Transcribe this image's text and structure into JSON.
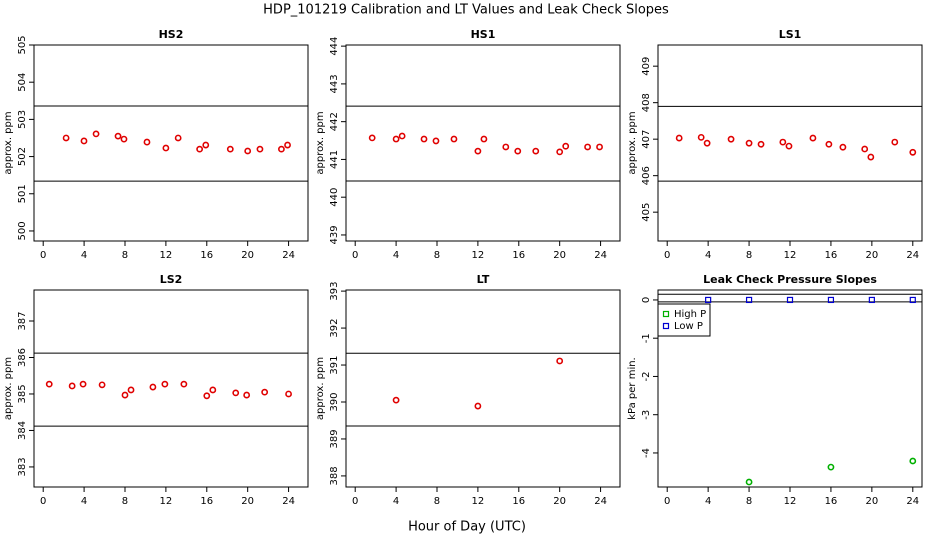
{
  "title": "HDP_101219  Calibration and LT Values and Leak Check Slopes",
  "xlabel": "Hour of Day (UTC)",
  "chart_data": [
    {
      "type": "scatter",
      "title": "HS2",
      "ylabel": "approx. ppm",
      "color": "#e00000",
      "marker": "circle",
      "x": [
        2.24,
        3.99,
        5.17,
        7.32,
        7.9,
        10.15,
        12.0,
        13.2,
        15.3,
        15.9,
        18.3,
        20.0,
        21.2,
        23.3,
        23.9
      ],
      "values": [
        502.5,
        502.42,
        502.61,
        502.55,
        502.47,
        502.39,
        502.23,
        502.5,
        502.2,
        502.31,
        502.2,
        502.15,
        502.2,
        502.2,
        502.31
      ],
      "xlim": [
        -0.9,
        25.9
      ],
      "xticks": [
        0,
        4,
        8,
        12,
        16,
        20,
        24
      ],
      "ylim": [
        499.73,
        505.0
      ],
      "yticks": [
        500,
        501,
        502,
        503,
        504,
        505
      ],
      "hlines": [
        503.36,
        501.34
      ]
    },
    {
      "type": "scatter",
      "title": "HS1",
      "ylabel": "approx. ppm",
      "color": "#e00000",
      "marker": "circle",
      "x": [
        1.66,
        4.0,
        4.59,
        6.73,
        7.9,
        9.66,
        12.0,
        12.59,
        14.73,
        15.9,
        17.66,
        20.0,
        20.59,
        22.73,
        23.9
      ],
      "values": [
        441.57,
        441.54,
        441.62,
        441.54,
        441.49,
        441.54,
        441.22,
        441.54,
        441.33,
        441.22,
        441.22,
        441.2,
        441.35,
        441.33,
        441.33
      ],
      "xlim": [
        -0.9,
        25.9
      ],
      "xticks": [
        0,
        4,
        8,
        12,
        16,
        20,
        24
      ],
      "ylim": [
        438.84,
        444.03
      ],
      "yticks": [
        439,
        440,
        441,
        442,
        443,
        444
      ],
      "hlines": [
        442.41,
        440.43
      ]
    },
    {
      "type": "scatter",
      "title": "LS1",
      "ylabel": "approx. ppm",
      "color": "#e00000",
      "marker": "circle",
      "x": [
        1.17,
        3.32,
        3.9,
        6.24,
        8.0,
        9.17,
        11.3,
        11.9,
        14.24,
        15.8,
        17.17,
        19.3,
        19.9,
        22.24,
        24.0
      ],
      "values": [
        407.03,
        407.05,
        406.89,
        407.0,
        406.89,
        406.86,
        406.92,
        406.81,
        407.03,
        406.86,
        406.78,
        406.73,
        406.51,
        406.92,
        406.64
      ],
      "xlim": [
        -0.9,
        24.9
      ],
      "xticks": [
        0,
        4,
        8,
        12,
        16,
        20,
        24
      ],
      "ylim": [
        404.21,
        409.58
      ],
      "yticks": [
        405,
        406,
        407,
        408,
        409
      ],
      "hlines": [
        407.9,
        405.85
      ]
    },
    {
      "type": "scatter",
      "title": "LS2",
      "ylabel": "approx. ppm",
      "color": "#e00000",
      "marker": "circle",
      "x": [
        0.59,
        2.83,
        3.9,
        5.76,
        8.0,
        8.59,
        10.73,
        11.9,
        13.76,
        16.0,
        16.59,
        18.83,
        19.9,
        21.66,
        24.0
      ],
      "values": [
        385.27,
        385.22,
        385.27,
        385.25,
        384.97,
        385.11,
        385.19,
        385.27,
        385.27,
        384.95,
        385.11,
        385.03,
        384.97,
        385.05,
        385.0
      ],
      "xlim": [
        -0.9,
        25.9
      ],
      "xticks": [
        0,
        4,
        8,
        12,
        16,
        20,
        24
      ],
      "ylim": [
        382.45,
        387.85
      ],
      "yticks": [
        383,
        384,
        385,
        386,
        387
      ],
      "hlines": [
        386.12,
        384.12
      ]
    },
    {
      "type": "scatter",
      "title": "LT",
      "ylabel": "approx. ppm",
      "color": "#e00000",
      "marker": "circle",
      "x": [
        4,
        12,
        20
      ],
      "values": [
        390.05,
        389.89,
        391.11
      ],
      "xlim": [
        -0.9,
        25.9
      ],
      "xticks": [
        0,
        4,
        8,
        12,
        16,
        20,
        24
      ],
      "ylim": [
        387.7,
        393.03
      ],
      "yticks": [
        388,
        389,
        390,
        391,
        392,
        393
      ],
      "hlines": [
        391.32,
        389.35
      ]
    },
    {
      "type": "scatter",
      "title": "Leak Check Pressure Slopes",
      "ylabel": "kPa per min.",
      "series": [
        {
          "name": "High P",
          "color": "#00b000",
          "marker": "circle",
          "x": [
            8,
            16,
            24
          ],
          "values": [
            -4.76,
            -4.37,
            -4.21
          ]
        },
        {
          "name": "Low P",
          "color": "#0000d0",
          "marker": "square",
          "x": [
            4,
            8,
            12,
            16,
            20,
            24
          ],
          "values": [
            0,
            0,
            0,
            0,
            0,
            0
          ]
        }
      ],
      "legend": "top-left",
      "xlim": [
        -0.9,
        24.9
      ],
      "xticks": [
        0,
        4,
        8,
        12,
        16,
        20,
        24
      ],
      "ylim": [
        -4.89,
        0.26
      ],
      "yticks": [
        0,
        -1,
        -2,
        -3,
        -4
      ],
      "hlines": [
        0.15,
        -0.05
      ]
    }
  ]
}
